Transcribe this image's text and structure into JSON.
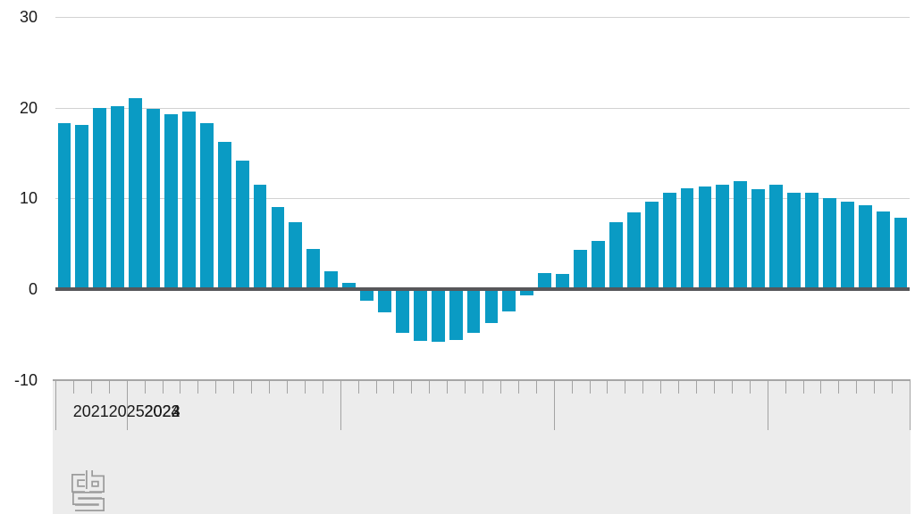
{
  "chart_data": {
    "type": "bar",
    "title": "",
    "categories": [
      "2021-09",
      "2021-10",
      "2021-11",
      "2021-12",
      "2022-01",
      "2022-02",
      "2022-03",
      "2022-04",
      "2022-05",
      "2022-06",
      "2022-07",
      "2022-08",
      "2022-09",
      "2022-10",
      "2022-11",
      "2022-12",
      "2023-01",
      "2023-02",
      "2023-03",
      "2023-04",
      "2023-05",
      "2023-06",
      "2023-07",
      "2023-08",
      "2023-09",
      "2023-10",
      "2023-11",
      "2023-12",
      "2024-01",
      "2024-02",
      "2024-03",
      "2024-04",
      "2024-05",
      "2024-06",
      "2024-07",
      "2024-08",
      "2024-09",
      "2024-10",
      "2024-11",
      "2024-12",
      "2025-01",
      "2025-02",
      "2025-03",
      "2025-04",
      "2025-05",
      "2025-06",
      "2025-07",
      "2025-08"
    ],
    "values": [
      18.3,
      18.1,
      20.0,
      20.2,
      21.0,
      19.9,
      19.3,
      19.6,
      18.3,
      16.2,
      14.2,
      11.5,
      9.1,
      7.4,
      4.4,
      2.0,
      0.7,
      -1.3,
      -2.6,
      -4.8,
      -5.7,
      -5.8,
      -5.6,
      -4.8,
      -3.7,
      -2.5,
      -0.7,
      1.8,
      1.7,
      4.3,
      5.3,
      7.4,
      8.5,
      9.6,
      10.6,
      11.1,
      11.3,
      11.5,
      11.9,
      11.0,
      11.5,
      10.6,
      10.6,
      10.0,
      9.6,
      9.2,
      8.6,
      7.9
    ],
    "year_groups": [
      {
        "label": "2021",
        "months": 4
      },
      {
        "label": "2022",
        "months": 12
      },
      {
        "label": "2023",
        "months": 12
      },
      {
        "label": "2024",
        "months": 12
      },
      {
        "label": "2025",
        "months": 8
      }
    ],
    "yticks": [
      30,
      20,
      10,
      0,
      -10
    ],
    "ylim": [
      -10,
      30
    ],
    "xlabel": "",
    "ylabel": "",
    "grid": true,
    "legend_position": "none",
    "colors": {
      "bar": "#0a9bc4",
      "zero_axis": "#57575a",
      "gridline": "#d2d2d2",
      "axis_band_bg": "#ececec",
      "axis_band_border": "#a6a6a6",
      "tick": "#a3a3a3",
      "text": "#1a1a1a",
      "logo": "#9c9c9c"
    }
  },
  "footer": {
    "logo_name": "cbs-logo"
  }
}
